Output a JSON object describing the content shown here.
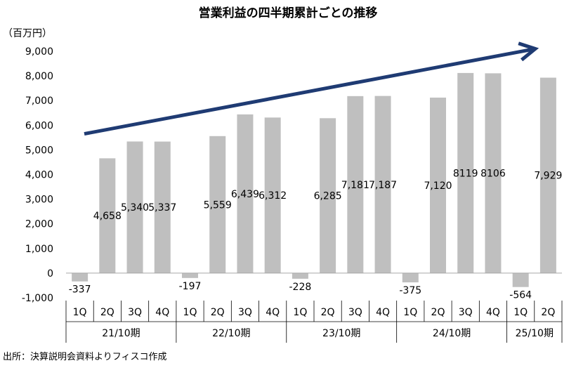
{
  "chart_data": {
    "type": "bar",
    "title": "営業利益の四半期累計ごとの推移",
    "unit": "（百万円）",
    "source": "出所：決算説明会資料よりフィスコ作成",
    "ylim": [
      -1000,
      9000
    ],
    "yticks": [
      "-1,000",
      "0",
      "1,000",
      "2,000",
      "3,000",
      "4,000",
      "5,000",
      "6,000",
      "7,000",
      "8,000",
      "9,000"
    ],
    "yvalues": [
      -1000,
      0,
      1000,
      2000,
      3000,
      4000,
      5000,
      6000,
      7000,
      8000,
      9000
    ],
    "grid": false,
    "colors": {
      "bar": "#bfbfbf",
      "arrow": "#1f3b73",
      "axis": "#a6a6a6"
    },
    "groups": [
      {
        "label": "21/10期",
        "bars": [
          {
            "q": "1Q",
            "value": -337,
            "label": "-337"
          },
          {
            "q": "2Q",
            "value": 4658,
            "label": "4,658"
          },
          {
            "q": "3Q",
            "value": 5340,
            "label": "5,340"
          },
          {
            "q": "4Q",
            "value": 5337,
            "label": "5,337"
          }
        ]
      },
      {
        "label": "22/10期",
        "bars": [
          {
            "q": "1Q",
            "value": -197,
            "label": "-197"
          },
          {
            "q": "2Q",
            "value": 5559,
            "label": "5,559"
          },
          {
            "q": "3Q",
            "value": 6439,
            "label": "6,439"
          },
          {
            "q": "4Q",
            "value": 6312,
            "label": "6,312"
          }
        ]
      },
      {
        "label": "23/10期",
        "bars": [
          {
            "q": "1Q",
            "value": -228,
            "label": "-228"
          },
          {
            "q": "2Q",
            "value": 6285,
            "label": "6,285"
          },
          {
            "q": "3Q",
            "value": 7181,
            "label": "7,181"
          },
          {
            "q": "4Q",
            "value": 7187,
            "label": "7,187"
          }
        ]
      },
      {
        "label": "24/10期",
        "bars": [
          {
            "q": "1Q",
            "value": -375,
            "label": "-375"
          },
          {
            "q": "2Q",
            "value": 7120,
            "label": "7,120"
          },
          {
            "q": "3Q",
            "value": 8119,
            "label": "8119"
          },
          {
            "q": "4Q",
            "value": 8106,
            "label": "8106"
          }
        ]
      },
      {
        "label": "25/10期",
        "bars": [
          {
            "q": "1Q",
            "value": -564,
            "label": "-564"
          },
          {
            "q": "2Q",
            "value": 7929,
            "label": "7,929"
          }
        ]
      }
    ],
    "trend_arrow": {
      "from_value": 5650,
      "to_value": 9100
    }
  }
}
